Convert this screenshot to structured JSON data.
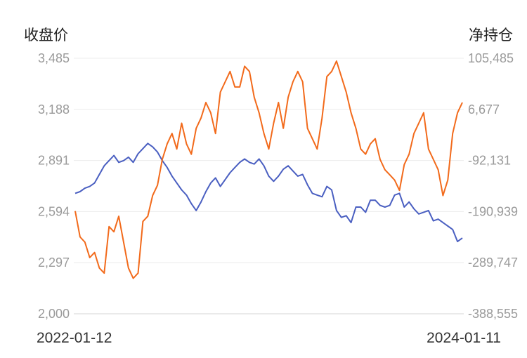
{
  "chart_data": {
    "type": "line",
    "left_axis_title": "收盘价",
    "right_axis_title": "净持仓",
    "left_ticks": [
      "3,485",
      "3,188",
      "2,891",
      "2,594",
      "2,297",
      "2,000"
    ],
    "right_ticks": [
      "105,485",
      "6,677",
      "-92,131",
      "-190,939",
      "-289,747",
      "-388,555"
    ],
    "left_ylim": [
      2000,
      3485
    ],
    "right_ylim": [
      -388555,
      105485
    ],
    "x_start_label": "2022-01-12",
    "x_end_label": "2024-01-11",
    "grid": true,
    "series": [
      {
        "axis": "left",
        "color": "#4a5fc1",
        "values": [
          2700,
          2710,
          2730,
          2740,
          2760,
          2810,
          2860,
          2890,
          2920,
          2880,
          2890,
          2910,
          2880,
          2930,
          2960,
          2990,
          2970,
          2940,
          2890,
          2850,
          2800,
          2760,
          2720,
          2690,
          2640,
          2600,
          2650,
          2710,
          2760,
          2790,
          2740,
          2780,
          2820,
          2850,
          2880,
          2900,
          2880,
          2870,
          2900,
          2860,
          2800,
          2770,
          2800,
          2840,
          2860,
          2830,
          2800,
          2810,
          2750,
          2700,
          2690,
          2680,
          2740,
          2720,
          2600,
          2560,
          2570,
          2530,
          2620,
          2620,
          2590,
          2660,
          2660,
          2630,
          2620,
          2630,
          2690,
          2700,
          2620,
          2650,
          2610,
          2580,
          2590,
          2600,
          2540,
          2550,
          2530,
          2510,
          2490,
          2420,
          2440
        ]
      },
      {
        "axis": "right",
        "color": "#f26a1b",
        "values": [
          -190000,
          -240000,
          -250000,
          -280000,
          -270000,
          -300000,
          -310000,
          -220000,
          -230000,
          -200000,
          -250000,
          -300000,
          -320000,
          -310000,
          -210000,
          -200000,
          -160000,
          -140000,
          -90000,
          -60000,
          -40000,
          -70000,
          -20000,
          -60000,
          -80000,
          -30000,
          -10000,
          20000,
          0,
          -40000,
          40000,
          60000,
          80000,
          50000,
          50000,
          90000,
          80000,
          30000,
          0,
          -40000,
          -70000,
          -20000,
          20000,
          -30000,
          30000,
          60000,
          80000,
          60000,
          -30000,
          -50000,
          -70000,
          -10000,
          70000,
          80000,
          100000,
          70000,
          40000,
          0,
          -30000,
          -70000,
          -80000,
          -60000,
          -50000,
          -90000,
          -110000,
          -120000,
          -130000,
          -150000,
          -100000,
          -80000,
          -40000,
          -20000,
          0,
          -70000,
          -90000,
          -110000,
          -160000,
          -130000,
          -40000,
          0,
          20000
        ]
      }
    ]
  }
}
